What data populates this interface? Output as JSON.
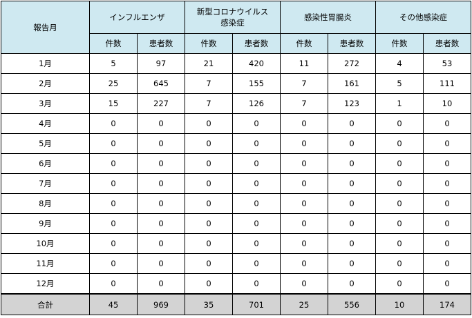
{
  "table": {
    "month_header": "報告月",
    "groups": [
      "インフルエンザ",
      "新型コロナウイルス感染症",
      "感染性胃腸炎",
      "その他感染症"
    ],
    "group_lines": [
      [
        "インフルエンザ",
        ""
      ],
      [
        "新型コロナウイルス",
        "感染症"
      ],
      [
        "感染性胃腸炎",
        ""
      ],
      [
        "その他感染症",
        ""
      ]
    ],
    "sub_headers": [
      "件数",
      "患者数"
    ],
    "rows": [
      {
        "month": "1月",
        "values": [
          "5",
          "97",
          "21",
          "420",
          "11",
          "272",
          "4",
          "53"
        ]
      },
      {
        "month": "2月",
        "values": [
          "25",
          "645",
          "7",
          "155",
          "7",
          "161",
          "5",
          "111"
        ]
      },
      {
        "month": "3月",
        "values": [
          "15",
          "227",
          "7",
          "126",
          "7",
          "123",
          "1",
          "10"
        ]
      },
      {
        "month": "4月",
        "values": [
          "0",
          "0",
          "0",
          "0",
          "0",
          "0",
          "0",
          "0"
        ]
      },
      {
        "month": "5月",
        "values": [
          "0",
          "0",
          "0",
          "0",
          "0",
          "0",
          "0",
          "0"
        ]
      },
      {
        "month": "6月",
        "values": [
          "0",
          "0",
          "0",
          "0",
          "0",
          "0",
          "0",
          "0"
        ]
      },
      {
        "month": "7月",
        "values": [
          "0",
          "0",
          "0",
          "0",
          "0",
          "0",
          "0",
          "0"
        ]
      },
      {
        "month": "8月",
        "values": [
          "0",
          "0",
          "0",
          "0",
          "0",
          "0",
          "0",
          "0"
        ]
      },
      {
        "month": "9月",
        "values": [
          "0",
          "0",
          "0",
          "0",
          "0",
          "0",
          "0",
          "0"
        ]
      },
      {
        "month": "10月",
        "values": [
          "0",
          "0",
          "0",
          "0",
          "0",
          "0",
          "0",
          "0"
        ]
      },
      {
        "month": "11月",
        "values": [
          "0",
          "0",
          "0",
          "0",
          "0",
          "0",
          "0",
          "0"
        ]
      },
      {
        "month": "12月",
        "values": [
          "0",
          "0",
          "0",
          "0",
          "0",
          "0",
          "0",
          "0"
        ]
      }
    ],
    "total": {
      "label": "合計",
      "values": [
        "45",
        "969",
        "35",
        "701",
        "25",
        "556",
        "10",
        "174"
      ]
    }
  },
  "colors": {
    "header_bg": "#cfe9f1",
    "total_bg": "#d3d3d3",
    "border": "#000000"
  }
}
